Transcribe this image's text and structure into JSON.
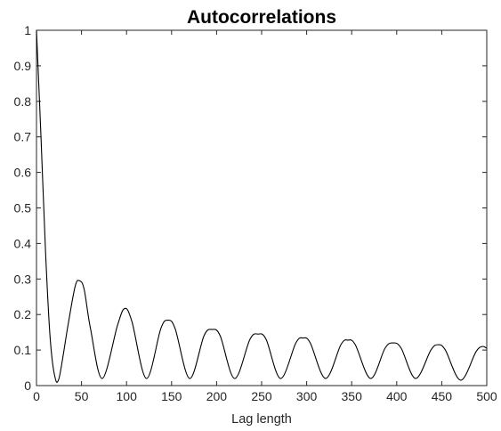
{
  "chart_data": {
    "type": "line",
    "title": "Autocorrelations",
    "xlabel": "Lag length",
    "ylabel": "",
    "xlim": [
      0,
      500
    ],
    "ylim": [
      0,
      1
    ],
    "x_ticks": [
      0,
      50,
      100,
      150,
      200,
      250,
      300,
      350,
      400,
      450,
      500
    ],
    "y_ticks": [
      0,
      0.1,
      0.2,
      0.3,
      0.4,
      0.5,
      0.6,
      0.7,
      0.8,
      0.9,
      1
    ],
    "x_tick_labels": [
      "0",
      "50",
      "100",
      "150",
      "200",
      "250",
      "300",
      "350",
      "400",
      "450",
      "500"
    ],
    "y_tick_labels": [
      "0",
      "0.1",
      "0.2",
      "0.3",
      "0.4",
      "0.5",
      "0.6",
      "0.7",
      "0.8",
      "0.9",
      "1"
    ],
    "grid": false,
    "line_color": "#000000",
    "series": [
      {
        "x": [
          0,
          5,
          10,
          15,
          20,
          25,
          35,
          43,
          48,
          53,
          60,
          73,
          90,
          98,
          106,
          122,
          138,
          146,
          154,
          170,
          186,
          195,
          204,
          220,
          237,
          246,
          255,
          271,
          288,
          296,
          304,
          321,
          338,
          346,
          354,
          371,
          387,
          396,
          405,
          421,
          438,
          446,
          454,
          471,
          488,
          495,
          500
        ],
        "y": [
          1.0,
          0.7,
          0.38,
          0.14,
          0.03,
          0.02,
          0.17,
          0.28,
          0.295,
          0.27,
          0.16,
          0.02,
          0.17,
          0.217,
          0.18,
          0.02,
          0.16,
          0.184,
          0.16,
          0.02,
          0.14,
          0.158,
          0.14,
          0.02,
          0.13,
          0.145,
          0.13,
          0.02,
          0.12,
          0.134,
          0.12,
          0.02,
          0.115,
          0.128,
          0.115,
          0.02,
          0.105,
          0.12,
          0.105,
          0.02,
          0.1,
          0.115,
          0.1,
          0.015,
          0.095,
          0.11,
          0.105
        ]
      }
    ]
  }
}
